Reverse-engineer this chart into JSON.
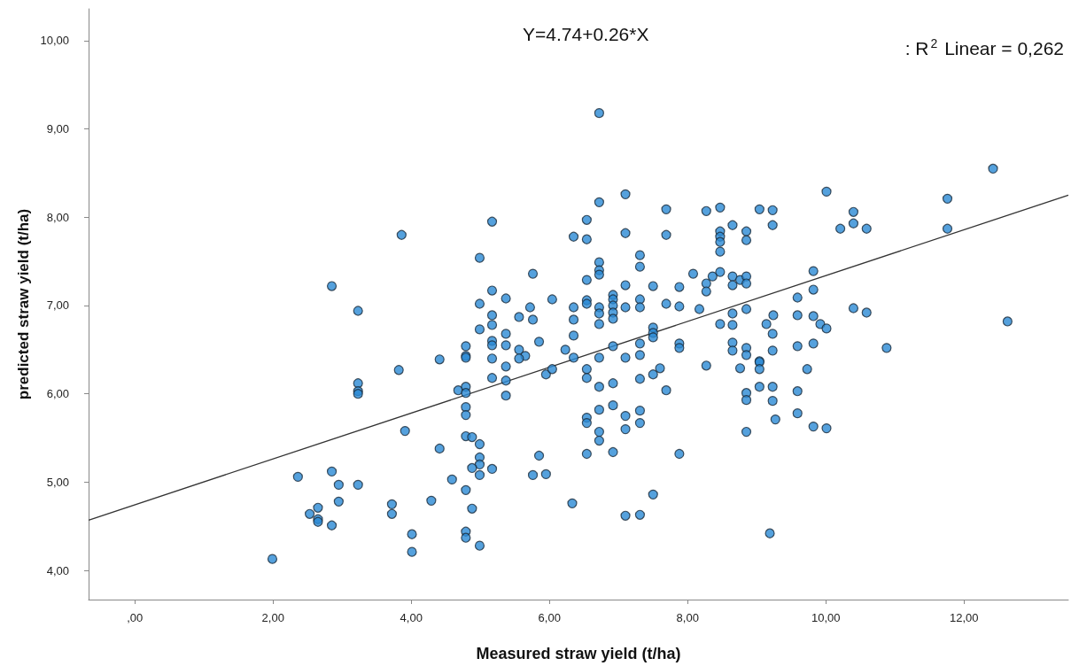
{
  "chart_data": {
    "type": "scatter",
    "xlabel": "Measured straw yield (t/ha)",
    "ylabel": "predicted straw yield (t/ha)",
    "annotations": [
      "Y=4.74+0.26*X",
      ": R$^{2}$ Linear = 0,262"
    ],
    "xlim": [
      -0.67,
      13.51
    ],
    "ylim": [
      3.67,
      10.36
    ],
    "xticks": [
      {
        "value": 0,
        "label": ",00"
      },
      {
        "value": 2,
        "label": "2,00"
      },
      {
        "value": 4,
        "label": "4,00"
      },
      {
        "value": 6,
        "label": "6,00"
      },
      {
        "value": 8,
        "label": "8,00"
      },
      {
        "value": 10,
        "label": "10,00"
      },
      {
        "value": 12,
        "label": "12,00"
      }
    ],
    "yticks": [
      {
        "value": 4,
        "label": "4,00"
      },
      {
        "value": 5,
        "label": "5,00"
      },
      {
        "value": 6,
        "label": "6,00"
      },
      {
        "value": 7,
        "label": "7,00"
      },
      {
        "value": 8,
        "label": "8,00"
      },
      {
        "value": 9,
        "label": "9,00"
      },
      {
        "value": 10,
        "label": "10,00"
      }
    ],
    "grid": false,
    "marker": "circle",
    "series": [
      {
        "color": "#2a8ad4",
        "x": [
          2.85,
          3.23,
          3.23,
          3.23,
          3.23,
          3.82,
          4.41,
          4.79,
          4.79,
          4.79,
          4.99,
          4.99,
          4.99,
          4.68,
          4.79,
          4.79,
          4.79,
          4.79,
          3.91,
          4.41,
          4.79,
          4.88,
          4.99,
          4.99,
          4.99,
          4.88,
          4.99,
          4.59,
          4.79,
          4.88,
          4.79,
          4.79,
          4.99,
          4.29,
          4.01,
          4.01,
          3.72,
          3.72,
          3.23,
          2.85,
          2.95,
          2.95,
          2.36,
          2.65,
          2.53,
          2.65,
          2.65,
          2.85,
          1.99,
          3.86,
          6.72,
          6.72,
          7.1,
          5.17,
          6.54,
          6.35,
          6.54,
          7.1,
          7.69,
          7.69,
          8.27,
          8.47,
          9.04,
          9.23,
          9.23,
          8.65,
          8.47,
          8.47,
          8.47,
          8.47,
          8.85,
          8.85,
          5.76,
          6.72,
          6.72,
          6.72,
          6.54,
          7.31,
          7.31,
          7.1,
          7.5,
          7.88,
          8.08,
          8.27,
          8.36,
          8.27,
          8.47,
          8.65,
          8.65,
          8.76,
          8.85,
          8.85,
          5.17,
          5.37,
          5.17,
          5.17,
          5.37,
          5.17,
          5.17,
          5.37,
          5.17,
          5.56,
          5.72,
          5.76,
          6.04,
          5.85,
          5.56,
          5.65,
          5.56,
          6.35,
          6.35,
          6.35,
          6.23,
          6.35,
          6.54,
          6.54,
          6.72,
          6.72,
          6.72,
          6.72,
          6.92,
          6.92,
          6.92,
          6.92,
          6.92,
          6.92,
          7.1,
          7.1,
          7.31,
          7.31,
          7.31,
          7.31,
          7.5,
          7.5,
          7.5,
          7.69,
          7.88,
          7.88,
          7.88,
          8.17,
          8.47,
          8.65,
          8.65,
          8.65,
          8.65,
          8.85,
          8.85,
          8.85,
          9.04,
          9.14,
          9.24,
          9.23,
          9.23,
          9.59,
          9.59,
          9.59,
          5.37,
          5.17,
          5.37,
          5.37,
          5.95,
          6.04,
          6.54,
          6.54,
          6.72,
          6.92,
          7.31,
          7.5,
          7.6,
          7.69,
          8.27,
          8.76,
          9.04,
          9.04,
          9.04,
          9.23,
          9.23,
          9.27,
          8.85,
          8.85,
          8.85,
          9.59,
          9.59,
          6.54,
          6.54,
          6.72,
          6.92,
          7.1,
          7.1,
          7.31,
          7.31,
          6.72,
          6.72,
          6.54,
          6.92,
          7.88,
          5.85,
          5.76,
          5.95,
          5.17,
          6.33,
          7.5,
          7.1,
          7.31,
          9.19,
          12.42,
          10.01,
          10.4,
          10.4,
          10.21,
          10.59,
          11.76,
          11.76,
          9.82,
          9.82,
          9.82,
          9.92,
          10.01,
          10.4,
          10.59,
          12.63,
          10.88,
          9.82,
          9.73,
          9.82,
          10.01
        ],
        "values": [
          7.22,
          6.94,
          6.12,
          6.03,
          6.0,
          6.27,
          6.39,
          6.54,
          6.43,
          6.41,
          7.54,
          7.02,
          6.73,
          6.04,
          6.08,
          6.01,
          5.85,
          5.76,
          5.58,
          5.38,
          5.52,
          5.51,
          5.43,
          5.28,
          5.2,
          5.16,
          5.08,
          5.03,
          4.91,
          4.7,
          4.44,
          4.37,
          4.28,
          4.79,
          4.41,
          4.21,
          4.75,
          4.64,
          4.97,
          5.12,
          4.97,
          4.78,
          5.06,
          4.71,
          4.64,
          4.58,
          4.55,
          4.51,
          4.13,
          7.8,
          9.18,
          8.17,
          8.26,
          7.95,
          7.97,
          7.78,
          7.75,
          7.82,
          8.09,
          7.8,
          8.07,
          8.11,
          8.09,
          8.08,
          7.91,
          7.91,
          7.84,
          7.78,
          7.72,
          7.61,
          7.84,
          7.74,
          7.36,
          7.49,
          7.4,
          7.35,
          7.29,
          7.57,
          7.44,
          7.23,
          7.22,
          7.21,
          7.36,
          7.25,
          7.33,
          7.16,
          7.38,
          7.33,
          7.23,
          7.29,
          7.33,
          7.25,
          7.17,
          7.08,
          6.89,
          6.78,
          6.68,
          6.6,
          6.55,
          6.55,
          6.4,
          6.87,
          6.98,
          6.84,
          7.07,
          6.59,
          6.5,
          6.43,
          6.4,
          6.98,
          6.84,
          6.66,
          6.5,
          6.41,
          7.06,
          7.02,
          6.98,
          6.91,
          6.79,
          6.41,
          7.12,
          7.07,
          7.0,
          6.92,
          6.85,
          6.54,
          6.98,
          6.41,
          7.07,
          6.98,
          6.57,
          6.44,
          6.75,
          6.69,
          6.64,
          7.02,
          6.99,
          6.57,
          6.52,
          6.96,
          6.79,
          6.91,
          6.78,
          6.58,
          6.49,
          6.96,
          6.52,
          6.44,
          6.37,
          6.79,
          6.89,
          6.68,
          6.49,
          7.09,
          6.89,
          6.54,
          6.31,
          6.18,
          6.15,
          5.98,
          6.22,
          6.28,
          6.28,
          6.18,
          6.08,
          6.12,
          6.17,
          6.22,
          6.29,
          6.04,
          6.32,
          6.29,
          6.36,
          6.28,
          6.08,
          6.08,
          5.92,
          5.71,
          6.01,
          5.93,
          5.57,
          6.03,
          5.78,
          5.73,
          5.67,
          5.82,
          5.87,
          5.75,
          5.6,
          5.81,
          5.67,
          5.57,
          5.47,
          5.32,
          5.34,
          5.32,
          5.3,
          5.08,
          5.09,
          5.15,
          4.76,
          4.86,
          4.62,
          4.63,
          4.42,
          8.55,
          8.29,
          8.06,
          7.93,
          7.87,
          7.87,
          8.21,
          7.87,
          7.39,
          7.18,
          6.88,
          6.79,
          6.74,
          6.97,
          6.92,
          6.82,
          6.52,
          6.57,
          6.28,
          5.63,
          5.61
        ]
      },
      {
        "type": "line",
        "color": "#333333",
        "marker": "none",
        "x": [
          -0.67,
          13.51
        ],
        "values": [
          4.57,
          8.25
        ]
      }
    ]
  }
}
